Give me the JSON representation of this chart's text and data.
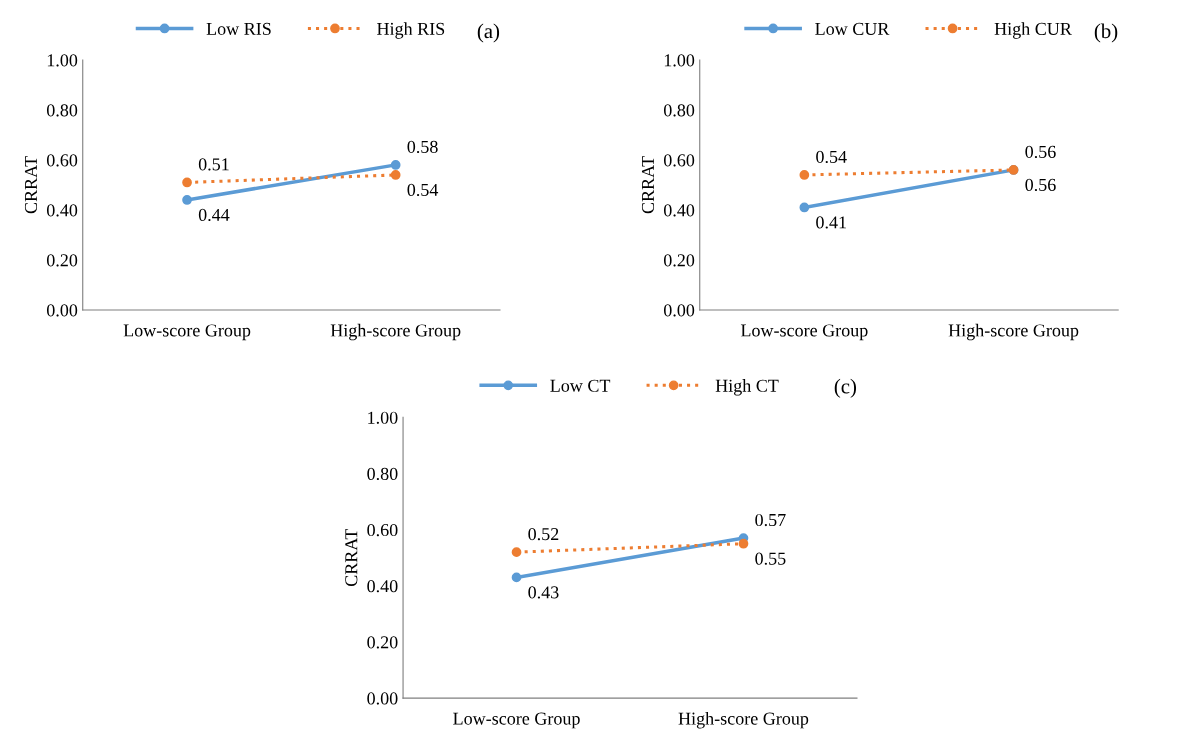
{
  "chart_data": [
    {
      "type": "line",
      "ylabel": "CRRAT",
      "annotations": [
        "(a)"
      ],
      "categories": [
        "Low-score Group",
        "High-score Group"
      ],
      "ylim": [
        0,
        1
      ],
      "yticks": [
        {
          "value": 0,
          "label": "0.00"
        },
        {
          "value": 0.2,
          "label": "0.20"
        },
        {
          "value": 0.4,
          "label": "0.40"
        },
        {
          "value": 0.6,
          "label": "0.60"
        },
        {
          "value": 0.8,
          "label": "0.80"
        },
        {
          "value": 1,
          "label": "1.00"
        }
      ],
      "legend": "top",
      "marker": "circle",
      "data_labels": true,
      "grid": false,
      "series": [
        {
          "name": "Low RIS",
          "color": "#5b9bd5",
          "line_style": "solid",
          "values": [
            0.44,
            0.58
          ]
        },
        {
          "name": "High RIS",
          "color": "#ed7d31",
          "line_style": "dotted",
          "values": [
            0.51,
            0.54
          ]
        }
      ]
    },
    {
      "type": "line",
      "ylabel": "CRRAT",
      "annotations": [
        "(b)"
      ],
      "categories": [
        "Low-score Group",
        "High-score Group"
      ],
      "ylim": [
        0,
        1
      ],
      "yticks": [
        {
          "value": 0,
          "label": "0.00"
        },
        {
          "value": 0.2,
          "label": "0.20"
        },
        {
          "value": 0.4,
          "label": "0.40"
        },
        {
          "value": 0.6,
          "label": "0.60"
        },
        {
          "value": 0.8,
          "label": "0.80"
        },
        {
          "value": 1,
          "label": "1.00"
        }
      ],
      "legend": "top",
      "marker": "circle",
      "data_labels": true,
      "grid": false,
      "series": [
        {
          "name": "Low CUR",
          "color": "#5b9bd5",
          "line_style": "solid",
          "values": [
            0.41,
            0.56
          ]
        },
        {
          "name": "High CUR",
          "color": "#ed7d31",
          "line_style": "dotted",
          "values": [
            0.54,
            0.56
          ]
        }
      ]
    },
    {
      "type": "line",
      "ylabel": "CRRAT",
      "annotations": [
        "(c)"
      ],
      "categories": [
        "Low-score Group",
        "High-score Group"
      ],
      "ylim": [
        0,
        1
      ],
      "yticks": [
        {
          "value": 0,
          "label": "0.00"
        },
        {
          "value": 0.2,
          "label": "0.20"
        },
        {
          "value": 0.4,
          "label": "0.40"
        },
        {
          "value": 0.6,
          "label": "0.60"
        },
        {
          "value": 0.8,
          "label": "0.80"
        },
        {
          "value": 1,
          "label": "1.00"
        }
      ],
      "legend": "top",
      "marker": "circle",
      "data_labels": true,
      "grid": false,
      "series": [
        {
          "name": "Low CT",
          "color": "#5b9bd5",
          "line_style": "solid",
          "values": [
            0.43,
            0.57
          ]
        },
        {
          "name": "High CT",
          "color": "#ed7d31",
          "line_style": "dotted",
          "values": [
            0.52,
            0.55
          ]
        }
      ]
    }
  ]
}
